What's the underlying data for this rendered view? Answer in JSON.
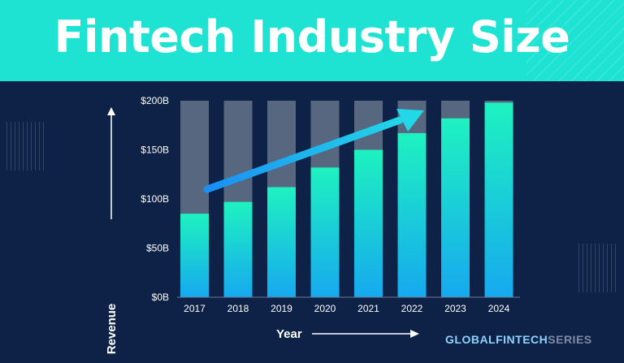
{
  "header": {
    "title": "Fintech Industry Size"
  },
  "brand": {
    "part1": "GLOBALFINTECH",
    "part2": "SERIES"
  },
  "colors": {
    "header_bg": "#1ee3d2",
    "background": "#0d2246",
    "bar_top": "#1ef2c0",
    "bar_bottom": "#16a9ef",
    "bar_track": "#56677f",
    "arrow": "#1aa9f4",
    "axis_text": "#ffffff"
  },
  "chart_data": {
    "type": "bar",
    "xlabel": "Year",
    "ylabel": "Revenue",
    "categories": [
      "2017",
      "2018",
      "2019",
      "2020",
      "2021",
      "2022",
      "2023",
      "2024"
    ],
    "values": [
      85,
      97,
      112,
      132,
      150,
      167,
      182,
      198
    ],
    "ylim": [
      0,
      200
    ],
    "yticks": [
      "$0B",
      "$50B",
      "$100B",
      "$150B",
      "$200B"
    ],
    "ytick_values": [
      0,
      50,
      100,
      150,
      200
    ],
    "grid": false,
    "legend": "none",
    "trend_arrow": true
  }
}
